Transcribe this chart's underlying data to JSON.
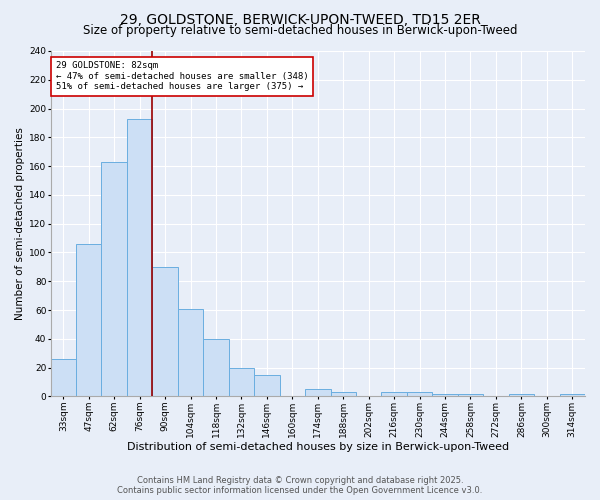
{
  "title": "29, GOLDSTONE, BERWICK-UPON-TWEED, TD15 2ER",
  "subtitle": "Size of property relative to semi-detached houses in Berwick-upon-Tweed",
  "xlabel": "Distribution of semi-detached houses by size in Berwick-upon-Tweed",
  "ylabel": "Number of semi-detached properties",
  "categories": [
    "33sqm",
    "47sqm",
    "62sqm",
    "76sqm",
    "90sqm",
    "104sqm",
    "118sqm",
    "132sqm",
    "146sqm",
    "160sqm",
    "174sqm",
    "188sqm",
    "202sqm",
    "216sqm",
    "230sqm",
    "244sqm",
    "258sqm",
    "272sqm",
    "286sqm",
    "300sqm",
    "314sqm"
  ],
  "values": [
    26,
    106,
    163,
    193,
    90,
    61,
    40,
    20,
    15,
    0,
    5,
    3,
    0,
    3,
    3,
    2,
    2,
    0,
    2,
    0,
    2
  ],
  "bar_color": "#ccdff5",
  "bar_edge_color": "#6aaee0",
  "vline_x": 3.5,
  "vline_color": "#990000",
  "annotation_title": "29 GOLDSTONE: 82sqm",
  "annotation_line1": "← 47% of semi-detached houses are smaller (348)",
  "annotation_line2": "51% of semi-detached houses are larger (375) →",
  "annotation_box_facecolor": "#ffffff",
  "annotation_box_edgecolor": "#cc0000",
  "ylim": [
    0,
    240
  ],
  "yticks": [
    0,
    20,
    40,
    60,
    80,
    100,
    120,
    140,
    160,
    180,
    200,
    220,
    240
  ],
  "footer1": "Contains HM Land Registry data © Crown copyright and database right 2025.",
  "footer2": "Contains public sector information licensed under the Open Government Licence v3.0.",
  "bg_color": "#e8eef8",
  "plot_bg_color": "#e8eef8",
  "title_fontsize": 10,
  "subtitle_fontsize": 8.5,
  "ylabel_fontsize": 7.5,
  "xlabel_fontsize": 8,
  "tick_fontsize": 6.5,
  "annotation_fontsize": 6.5,
  "footer_fontsize": 6
}
